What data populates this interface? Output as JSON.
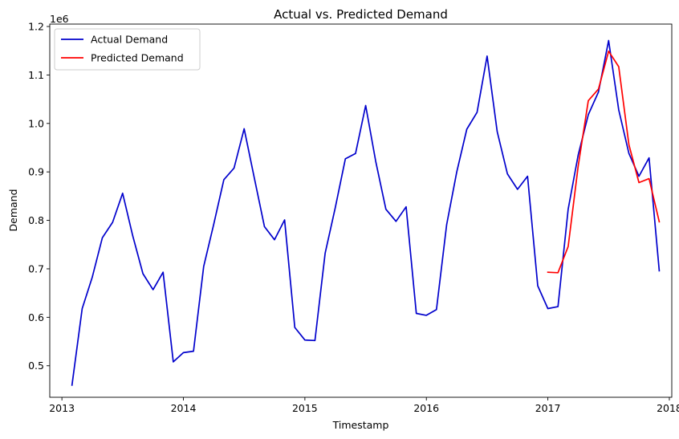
{
  "chart_data": {
    "type": "line",
    "title": "Actual vs. Predicted Demand",
    "xlabel": "Timestamp",
    "ylabel": "Demand",
    "y_multiplier_label": "1e6",
    "xlim": [
      2012.9,
      2018.02
    ],
    "ylim": [
      0.435,
      1.205
    ],
    "x_ticks": [
      2013,
      2014,
      2015,
      2016,
      2017,
      2018
    ],
    "x_tick_labels": [
      "2013",
      "2014",
      "2015",
      "2016",
      "2017",
      "2018"
    ],
    "y_ticks": [
      0.5,
      0.6,
      0.7,
      0.8,
      0.9,
      1.0,
      1.1,
      1.2
    ],
    "y_tick_labels": [
      "0.5",
      "0.6",
      "0.7",
      "0.8",
      "0.9",
      "1.0",
      "1.1",
      "1.2"
    ],
    "grid": false,
    "legend_position": "upper-left",
    "series": [
      {
        "name": "Actual Demand",
        "color": "#0000cc",
        "x": [
          2013.083,
          2013.167,
          2013.25,
          2013.333,
          2013.417,
          2013.5,
          2013.583,
          2013.667,
          2013.75,
          2013.833,
          2013.917,
          2014.0,
          2014.083,
          2014.167,
          2014.25,
          2014.333,
          2014.417,
          2014.5,
          2014.583,
          2014.667,
          2014.75,
          2014.833,
          2014.917,
          2015.0,
          2015.083,
          2015.167,
          2015.25,
          2015.333,
          2015.417,
          2015.5,
          2015.583,
          2015.667,
          2015.75,
          2015.833,
          2015.917,
          2016.0,
          2016.083,
          2016.167,
          2016.25,
          2016.333,
          2016.417,
          2016.5,
          2016.583,
          2016.667,
          2016.75,
          2016.833,
          2016.917,
          2017.0,
          2017.083,
          2017.167,
          2017.25,
          2017.333,
          2017.417,
          2017.5,
          2017.583,
          2017.667,
          2017.75,
          2017.833,
          2017.917
        ],
        "values": [
          0.46,
          0.618,
          0.683,
          0.764,
          0.796,
          0.856,
          0.768,
          0.69,
          0.657,
          0.693,
          0.508,
          0.527,
          0.53,
          0.705,
          0.792,
          0.884,
          0.908,
          0.989,
          0.888,
          0.787,
          0.76,
          0.801,
          0.579,
          0.553,
          0.552,
          0.732,
          0.826,
          0.927,
          0.938,
          1.037,
          0.922,
          0.823,
          0.798,
          0.828,
          0.608,
          0.604,
          0.616,
          0.791,
          0.9,
          0.988,
          1.023,
          1.139,
          0.983,
          0.896,
          0.864,
          0.891,
          0.665,
          0.618,
          0.622,
          0.823,
          0.935,
          1.018,
          1.065,
          1.171,
          1.028,
          0.938,
          0.891,
          0.929,
          0.696
        ]
      },
      {
        "name": "Predicted Demand",
        "color": "#ff0000",
        "x": [
          2017.0,
          2017.083,
          2017.167,
          2017.25,
          2017.333,
          2017.417,
          2017.5,
          2017.583,
          2017.667,
          2017.75,
          2017.833,
          2017.917
        ],
        "values": [
          0.693,
          0.692,
          0.746,
          0.912,
          1.047,
          1.071,
          1.149,
          1.117,
          0.956,
          0.878,
          0.886,
          0.797
        ]
      }
    ]
  }
}
